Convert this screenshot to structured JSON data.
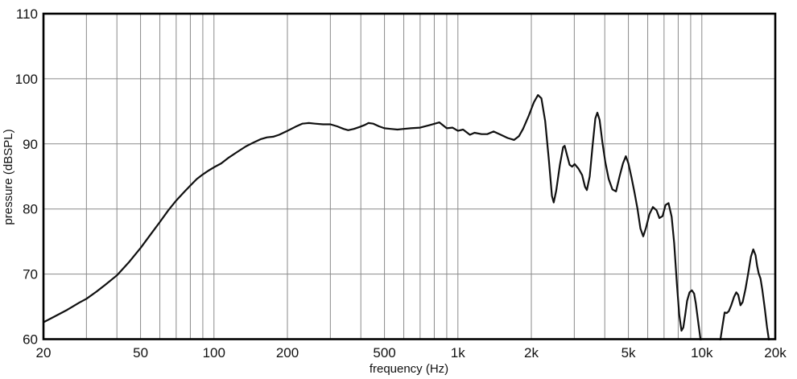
{
  "colors": {
    "background": "#ffffff",
    "grid": "#8a8a8a",
    "frame": "#000000",
    "curve": "#101010",
    "text": "#111111"
  },
  "chart_data": {
    "type": "line",
    "title": "",
    "xlabel": "frequency (Hz)",
    "ylabel": "pressure (dBSPL)",
    "x_scale": "log",
    "grid": "on",
    "legend": "none",
    "xlim": [
      20,
      20000
    ],
    "ylim": [
      60,
      110
    ],
    "x_ticks": [
      {
        "v": 20,
        "label": "20"
      },
      {
        "v": 50,
        "label": "50"
      },
      {
        "v": 100,
        "label": "100"
      },
      {
        "v": 200,
        "label": "200"
      },
      {
        "v": 500,
        "label": "500"
      },
      {
        "v": 1000,
        "label": "1k"
      },
      {
        "v": 2000,
        "label": "2k"
      },
      {
        "v": 5000,
        "label": "5k"
      },
      {
        "v": 10000,
        "label": "10k"
      },
      {
        "v": 20000,
        "label": "20k"
      }
    ],
    "y_ticks": [
      {
        "v": 60,
        "label": "60"
      },
      {
        "v": 70,
        "label": "70"
      },
      {
        "v": 80,
        "label": "80"
      },
      {
        "v": 90,
        "label": "90"
      },
      {
        "v": 100,
        "label": "100"
      },
      {
        "v": 110,
        "label": "110"
      }
    ],
    "x_gridlines": [
      30,
      40,
      50,
      60,
      70,
      80,
      90,
      100,
      200,
      300,
      400,
      500,
      600,
      700,
      800,
      900,
      1000,
      2000,
      3000,
      4000,
      5000,
      6000,
      7000,
      8000,
      9000,
      10000
    ],
    "y_gridlines": [
      70,
      80,
      90,
      100
    ],
    "series": [
      {
        "name": "curve",
        "points": [
          [
            20,
            62.6
          ],
          [
            22,
            63.4
          ],
          [
            25,
            64.5
          ],
          [
            28,
            65.6
          ],
          [
            30,
            66.2
          ],
          [
            33,
            67.3
          ],
          [
            36,
            68.4
          ],
          [
            40,
            69.8
          ],
          [
            45,
            71.9
          ],
          [
            50,
            74.0
          ],
          [
            55,
            76.1
          ],
          [
            60,
            78.0
          ],
          [
            65,
            79.8
          ],
          [
            70,
            81.3
          ],
          [
            75,
            82.5
          ],
          [
            80,
            83.6
          ],
          [
            85,
            84.6
          ],
          [
            90,
            85.3
          ],
          [
            95,
            85.9
          ],
          [
            100,
            86.4
          ],
          [
            107,
            87.0
          ],
          [
            115,
            87.9
          ],
          [
            125,
            88.8
          ],
          [
            135,
            89.6
          ],
          [
            145,
            90.2
          ],
          [
            155,
            90.7
          ],
          [
            165,
            91.0
          ],
          [
            175,
            91.1
          ],
          [
            185,
            91.4
          ],
          [
            200,
            92.0
          ],
          [
            215,
            92.6
          ],
          [
            230,
            93.1
          ],
          [
            245,
            93.2
          ],
          [
            260,
            93.1
          ],
          [
            280,
            93.0
          ],
          [
            300,
            93.0
          ],
          [
            320,
            92.7
          ],
          [
            340,
            92.3
          ],
          [
            355,
            92.1
          ],
          [
            375,
            92.3
          ],
          [
            395,
            92.6
          ],
          [
            415,
            92.9
          ],
          [
            430,
            93.2
          ],
          [
            450,
            93.1
          ],
          [
            475,
            92.7
          ],
          [
            500,
            92.4
          ],
          [
            530,
            92.3
          ],
          [
            565,
            92.2
          ],
          [
            600,
            92.3
          ],
          [
            640,
            92.4
          ],
          [
            700,
            92.5
          ],
          [
            770,
            92.9
          ],
          [
            840,
            93.3
          ],
          [
            900,
            92.4
          ],
          [
            950,
            92.5
          ],
          [
            1000,
            92.0
          ],
          [
            1050,
            92.2
          ],
          [
            1120,
            91.4
          ],
          [
            1170,
            91.7
          ],
          [
            1250,
            91.5
          ],
          [
            1320,
            91.5
          ],
          [
            1400,
            91.9
          ],
          [
            1500,
            91.4
          ],
          [
            1600,
            90.9
          ],
          [
            1700,
            90.6
          ],
          [
            1780,
            91.2
          ],
          [
            1850,
            92.3
          ],
          [
            1950,
            94.3
          ],
          [
            2050,
            96.4
          ],
          [
            2130,
            97.5
          ],
          [
            2200,
            97.0
          ],
          [
            2280,
            93.5
          ],
          [
            2360,
            87.5
          ],
          [
            2430,
            82.0
          ],
          [
            2470,
            81.0
          ],
          [
            2530,
            82.8
          ],
          [
            2620,
            86.8
          ],
          [
            2700,
            89.5
          ],
          [
            2740,
            89.7
          ],
          [
            2800,
            88.3
          ],
          [
            2870,
            86.8
          ],
          [
            2940,
            86.5
          ],
          [
            3010,
            86.9
          ],
          [
            3120,
            86.2
          ],
          [
            3230,
            85.2
          ],
          [
            3320,
            83.4
          ],
          [
            3380,
            82.9
          ],
          [
            3470,
            85.0
          ],
          [
            3560,
            89.5
          ],
          [
            3660,
            93.9
          ],
          [
            3730,
            94.8
          ],
          [
            3810,
            93.7
          ],
          [
            3910,
            90.3
          ],
          [
            4020,
            87.2
          ],
          [
            4150,
            84.6
          ],
          [
            4300,
            83.0
          ],
          [
            4450,
            82.7
          ],
          [
            4600,
            85.0
          ],
          [
            4750,
            87.0
          ],
          [
            4880,
            88.1
          ],
          [
            5000,
            87.0
          ],
          [
            5150,
            84.8
          ],
          [
            5300,
            82.5
          ],
          [
            5450,
            80.0
          ],
          [
            5600,
            77.0
          ],
          [
            5750,
            75.8
          ],
          [
            5900,
            77.1
          ],
          [
            6100,
            79.2
          ],
          [
            6300,
            80.3
          ],
          [
            6520,
            79.8
          ],
          [
            6700,
            78.6
          ],
          [
            6900,
            78.9
          ],
          [
            7100,
            80.6
          ],
          [
            7300,
            80.9
          ],
          [
            7520,
            78.8
          ],
          [
            7700,
            74.8
          ],
          [
            7900,
            68.5
          ],
          [
            8080,
            63.8
          ],
          [
            8250,
            61.3
          ],
          [
            8400,
            61.8
          ],
          [
            8550,
            63.8
          ],
          [
            8700,
            65.9
          ],
          [
            8900,
            67.2
          ],
          [
            9100,
            67.5
          ],
          [
            9300,
            67.0
          ],
          [
            9450,
            65.5
          ],
          [
            9650,
            62.8
          ],
          [
            9850,
            60.3
          ],
          [
            10000,
            58.8
          ],
          [
            10400,
            56.5
          ],
          [
            10900,
            55.8
          ],
          [
            11400,
            57.2
          ],
          [
            11900,
            59.8
          ],
          [
            12150,
            62.0
          ],
          [
            12400,
            64.1
          ],
          [
            12650,
            64.0
          ],
          [
            12900,
            64.3
          ],
          [
            13200,
            65.2
          ],
          [
            13550,
            66.5
          ],
          [
            13850,
            67.2
          ],
          [
            14100,
            66.8
          ],
          [
            14400,
            65.2
          ],
          [
            14700,
            65.7
          ],
          [
            15100,
            67.7
          ],
          [
            15500,
            70.2
          ],
          [
            15900,
            72.7
          ],
          [
            16250,
            73.8
          ],
          [
            16600,
            72.9
          ],
          [
            16850,
            71.3
          ],
          [
            17100,
            70.1
          ],
          [
            17400,
            69.3
          ],
          [
            17700,
            67.6
          ],
          [
            18100,
            64.8
          ],
          [
            18500,
            61.9
          ],
          [
            18850,
            59.8
          ],
          [
            19100,
            58.0
          ]
        ]
      }
    ]
  }
}
